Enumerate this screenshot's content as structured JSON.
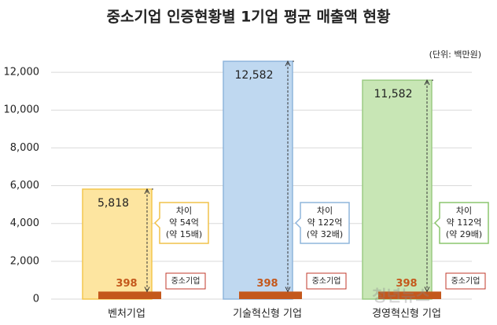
{
  "chart_data": {
    "type": "bar",
    "title": "중소기업 인증현황별 1기업 평균 매출액 현황",
    "unit": "(단위: 백만원)",
    "categories": [
      "벤처기업",
      "기술혁신형 기업",
      "경영혁신형 기업"
    ],
    "series": [
      {
        "values": [
          5818,
          12582,
          11582
        ],
        "value_labels": [
          "5,818",
          "12,582",
          "11,582"
        ],
        "colors": [
          "#fde5a0",
          "#bfd8f0",
          "#c8e6b5"
        ],
        "borders": [
          "#f3c64e",
          "#8fb5dc",
          "#9ccc83"
        ]
      },
      {
        "name": "중소기업",
        "values": [
          398,
          398,
          398
        ],
        "color": "#c4581c"
      }
    ],
    "annotations": [
      {
        "lines": [
          "차이",
          "약 54억",
          "(약 15배)"
        ],
        "color": "#f1c24a"
      },
      {
        "lines": [
          "차이",
          "약 122억",
          "(약 32배)"
        ],
        "color": "#8fb5dc"
      },
      {
        "lines": [
          "차이",
          "약 112억",
          "(약 29배)"
        ],
        "color": "#8cc56e"
      }
    ],
    "ylim": [
      0,
      13000
    ],
    "yticks": [
      0,
      {
        "value": 2000,
        "label": "2,000"
      },
      {
        "value": 4000,
        "label": "4,000"
      },
      {
        "value": 6000,
        "label": "6,000"
      },
      {
        "value": 8000,
        "label": "8,000"
      },
      {
        "value": 10000,
        "label": "10,000"
      },
      {
        "value": 12000,
        "label": "12,000"
      }
    ],
    "grid": true,
    "watermark": "청년뉴스"
  }
}
